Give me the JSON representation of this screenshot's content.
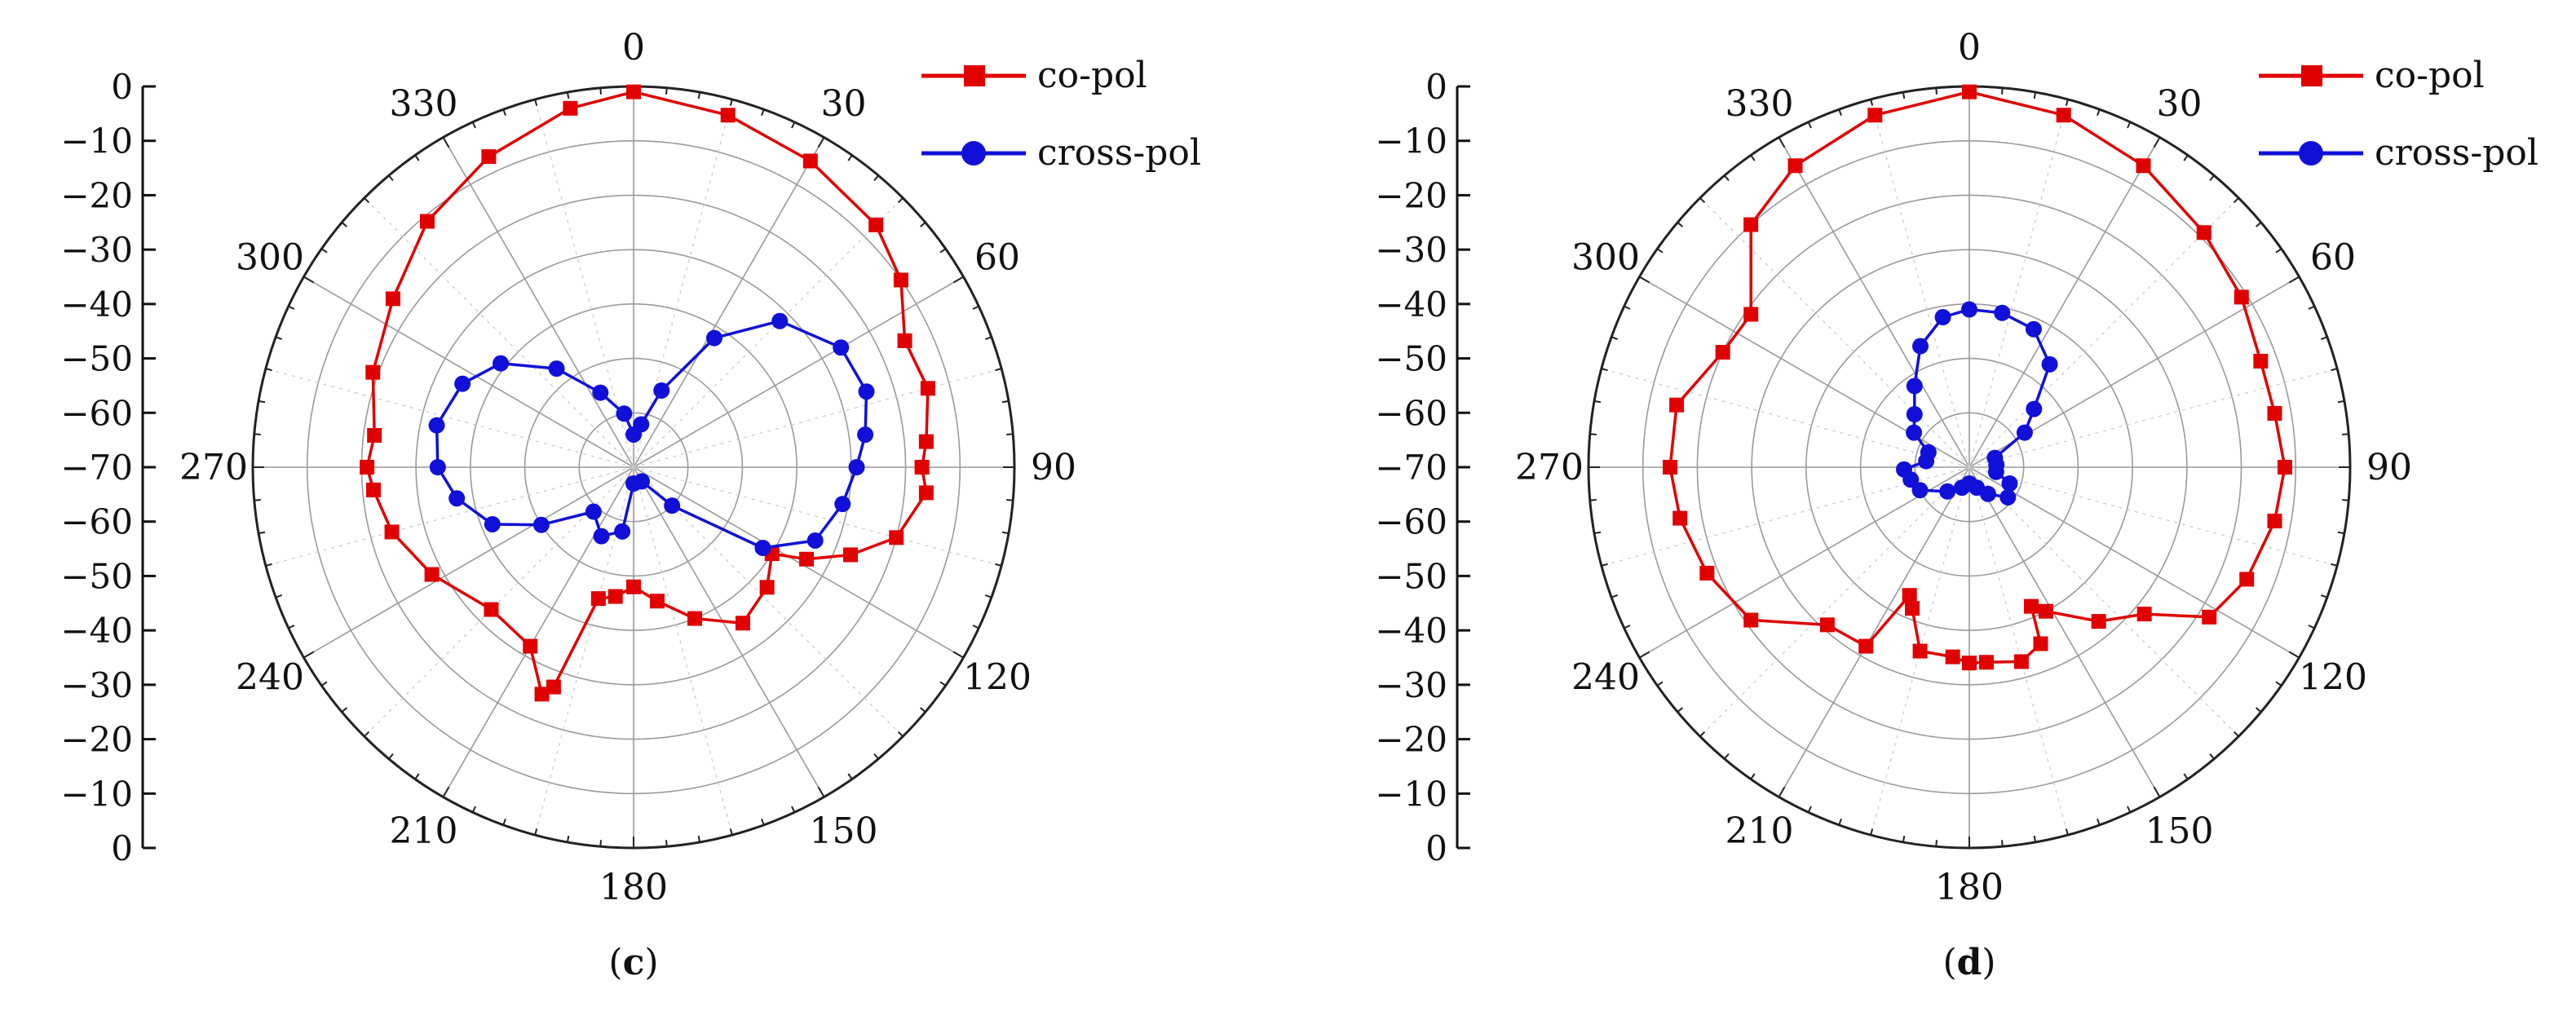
{
  "chart_data": [
    {
      "type": "polar-line",
      "panel_label": {
        "open": "(",
        "letter": "c",
        "close": ")"
      },
      "r_ticks": [
        "0",
        "−10",
        "−20",
        "−30",
        "−40",
        "−50",
        "−60",
        "−70",
        "−60",
        "−50",
        "−40",
        "−30",
        "−20",
        "−10",
        "0"
      ],
      "angle_ticks": [
        "0",
        "30",
        "60",
        "90",
        "120",
        "150",
        "180",
        "210",
        "240",
        "270",
        "300",
        "330"
      ],
      "r_range": [
        -70,
        0
      ],
      "grid": true,
      "legend_position": "top-right",
      "colors": {
        "co_pol": "#e00000",
        "cross_pol": "#1010d8"
      },
      "series": [
        {
          "name": "co-pol",
          "marker": "square",
          "points": [
            [
              0,
              -1
            ],
            [
              15,
              -3
            ],
            [
              30,
              -5
            ],
            [
              45,
              -7
            ],
            [
              55,
              -10
            ],
            [
              65,
              -15
            ],
            [
              75,
              -14
            ],
            [
              85,
              -16
            ],
            [
              90,
              -17
            ],
            [
              95,
              -16
            ],
            [
              105,
              -20
            ],
            [
              112,
              -27
            ],
            [
              118,
              -34
            ],
            [
              122,
              -40
            ],
            [
              132,
              -37
            ],
            [
              145,
              -35
            ],
            [
              158,
              -40
            ],
            [
              170,
              -45
            ],
            [
              180,
              -48
            ],
            [
              188,
              -46
            ],
            [
              195,
              -45
            ],
            [
              200,
              -27
            ],
            [
              202,
              -25
            ],
            [
              210,
              -32
            ],
            [
              225,
              -33
            ],
            [
              242,
              -28
            ],
            [
              255,
              -24
            ],
            [
              265,
              -22
            ],
            [
              270,
              -21
            ],
            [
              277,
              -22
            ],
            [
              290,
              -19
            ],
            [
              305,
              -16
            ],
            [
              320,
              -11
            ],
            [
              335,
              -7
            ],
            [
              350,
              -3
            ],
            [
              360,
              -1
            ]
          ]
        },
        {
          "name": "cross-pol",
          "marker": "circle",
          "points": [
            [
              0,
              -64
            ],
            [
              10,
              -62
            ],
            [
              20,
              -55
            ],
            [
              32,
              -42
            ],
            [
              45,
              -32
            ],
            [
              60,
              -26
            ],
            [
              72,
              -25
            ],
            [
              82,
              -27
            ],
            [
              90,
              -29
            ],
            [
              100,
              -31
            ],
            [
              112,
              -34
            ],
            [
              122,
              -42
            ],
            [
              135,
              -60
            ],
            [
              150,
              -67
            ],
            [
              180,
              -67
            ],
            [
              190,
              -58
            ],
            [
              205,
              -56
            ],
            [
              222,
              -59
            ],
            [
              238,
              -50
            ],
            [
              248,
              -42
            ],
            [
              260,
              -37
            ],
            [
              270,
              -34
            ],
            [
              282,
              -33
            ],
            [
              296,
              -35
            ],
            [
              308,
              -39
            ],
            [
              322,
              -47
            ],
            [
              336,
              -55
            ],
            [
              350,
              -60
            ],
            [
              360,
              -64
            ]
          ]
        }
      ]
    },
    {
      "type": "polar-line",
      "panel_label": {
        "open": "(",
        "letter": "d",
        "close": ")"
      },
      "r_ticks": [
        "0",
        "−10",
        "−20",
        "−30",
        "−40",
        "−50",
        "−60",
        "−70",
        "−60",
        "−50",
        "−40",
        "−30",
        "−20",
        "−10",
        "0"
      ],
      "angle_ticks": [
        "0",
        "30",
        "60",
        "90",
        "120",
        "150",
        "180",
        "210",
        "240",
        "270",
        "300",
        "330"
      ],
      "r_range": [
        -70,
        0
      ],
      "grid": true,
      "legend_position": "top-right",
      "colors": {
        "co_pol": "#e00000",
        "cross_pol": "#1010d8"
      },
      "series": [
        {
          "name": "co-pol",
          "marker": "square",
          "points": [
            [
              0,
              -1
            ],
            [
              15,
              -3
            ],
            [
              30,
              -6
            ],
            [
              45,
              -9
            ],
            [
              58,
              -11
            ],
            [
              70,
              -13
            ],
            [
              80,
              -13
            ],
            [
              90,
              -12
            ],
            [
              100,
              -13
            ],
            [
              112,
              -15
            ],
            [
              122,
              -18
            ],
            [
              130,
              -28
            ],
            [
              140,
              -33
            ],
            [
              152,
              -40
            ],
            [
              156,
              -42
            ],
            [
              158,
              -35
            ],
            [
              165,
              -33
            ],
            [
              175,
              -34
            ],
            [
              180,
              -34
            ],
            [
              185,
              -35
            ],
            [
              195,
              -35
            ],
            [
              202,
              -42
            ],
            [
              205,
              -44
            ],
            [
              210,
              -32
            ],
            [
              222,
              -31
            ],
            [
              235,
              -21
            ],
            [
              248,
              -18
            ],
            [
              260,
              -16
            ],
            [
              270,
              -15
            ],
            [
              282,
              -15
            ],
            [
              295,
              -20
            ],
            [
              305,
              -21
            ],
            [
              318,
              -10
            ],
            [
              330,
              -6
            ],
            [
              345,
              -3
            ],
            [
              360,
              -1
            ]
          ]
        },
        {
          "name": "cross-pol",
          "marker": "circle",
          "points": [
            [
              0,
              -41
            ],
            [
              12,
              -41
            ],
            [
              25,
              -42
            ],
            [
              38,
              -46
            ],
            [
              48,
              -54
            ],
            [
              58,
              -58
            ],
            [
              70,
              -65
            ],
            [
              85,
              -65
            ],
            [
              100,
              -65
            ],
            [
              112,
              -62
            ],
            [
              128,
              -61
            ],
            [
              145,
              -64
            ],
            [
              160,
              -66
            ],
            [
              180,
              -67
            ],
            [
              200,
              -66
            ],
            [
              222,
              -64
            ],
            [
              245,
              -60
            ],
            [
              258,
              -59
            ],
            [
              268,
              -58
            ],
            [
              278,
              -62
            ],
            [
              290,
              -62
            ],
            [
              302,
              -58
            ],
            [
              314,
              -56
            ],
            [
              326,
              -52
            ],
            [
              338,
              -46
            ],
            [
              350,
              -42
            ],
            [
              360,
              -41
            ]
          ]
        }
      ]
    }
  ]
}
